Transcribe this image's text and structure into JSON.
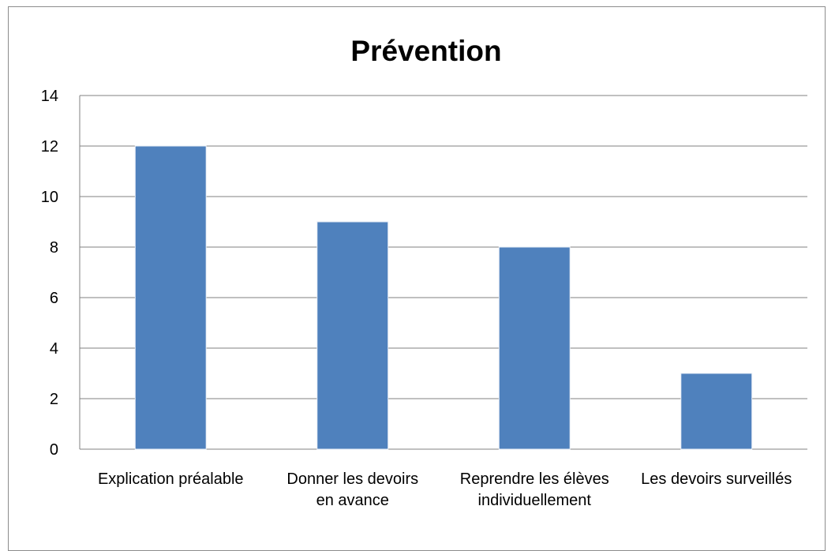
{
  "chart_data": {
    "type": "bar",
    "title": "Prévention",
    "xlabel": "",
    "ylabel": "",
    "categories": [
      [
        "Explication préalable"
      ],
      [
        "Donner les devoirs",
        "en avance"
      ],
      [
        "Reprendre les élèves",
        "individuellement"
      ],
      [
        "Les devoirs surveillés"
      ]
    ],
    "values": [
      12,
      9,
      8,
      3
    ],
    "ylim": [
      0,
      14
    ],
    "yticks": [
      0,
      2,
      4,
      6,
      8,
      10,
      12,
      14
    ],
    "grid": true,
    "legend": "none",
    "colors": {
      "bar": "#4f81bd",
      "grid": "#808080",
      "axis": "#808080"
    }
  }
}
